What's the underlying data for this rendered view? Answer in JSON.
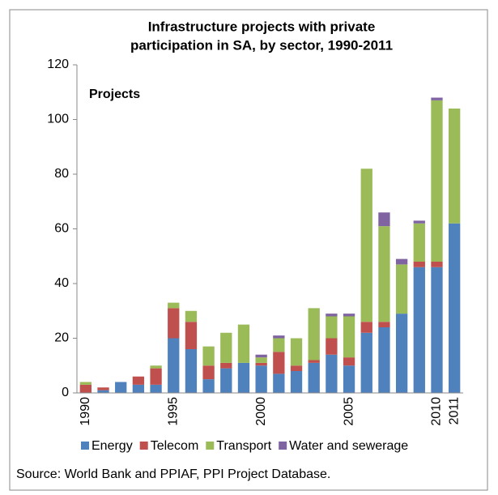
{
  "chart_data": {
    "type": "bar",
    "stacked": true,
    "title": [
      "Infrastructure projects with private",
      "participation in SA, by sector, 1990-2011"
    ],
    "y_label": "Projects",
    "source": "Source:  World Bank and PPIAF, PPI Project Database.",
    "categories": [
      "1990",
      null,
      null,
      null,
      null,
      "1995",
      null,
      null,
      null,
      null,
      "2000",
      null,
      null,
      null,
      null,
      "2005",
      null,
      null,
      null,
      null,
      "2010",
      "2011"
    ],
    "series": [
      {
        "name": "Energy",
        "color": "#4f81bd",
        "values": [
          0,
          1,
          4,
          3,
          3,
          20,
          16,
          5,
          9,
          11,
          10,
          7,
          8,
          11,
          14,
          10,
          22,
          24,
          29,
          46,
          46,
          62
        ]
      },
      {
        "name": "Telecom",
        "color": "#c0504d",
        "values": [
          3,
          1,
          0,
          3,
          6,
          11,
          10,
          5,
          2,
          0,
          1,
          8,
          2,
          1,
          6,
          3,
          4,
          2,
          0,
          2,
          2,
          0
        ]
      },
      {
        "name": "Transport",
        "color": "#9bbb59",
        "values": [
          1,
          0,
          0,
          0,
          1,
          2,
          4,
          7,
          11,
          14,
          2,
          5,
          10,
          19,
          8,
          15,
          56,
          35,
          18,
          14,
          59,
          42
        ]
      },
      {
        "name": "Water and sewerage",
        "color": "#8064a2",
        "values": [
          0,
          0,
          0,
          0,
          0,
          0,
          0,
          0,
          0,
          0,
          1,
          1,
          0,
          0,
          1,
          1,
          0,
          5,
          2,
          1,
          1,
          0
        ]
      }
    ],
    "ylim": [
      0,
      120
    ],
    "yticks": [
      0,
      20,
      40,
      60,
      80,
      100,
      120
    ],
    "grid": false,
    "legend": "bottom"
  }
}
